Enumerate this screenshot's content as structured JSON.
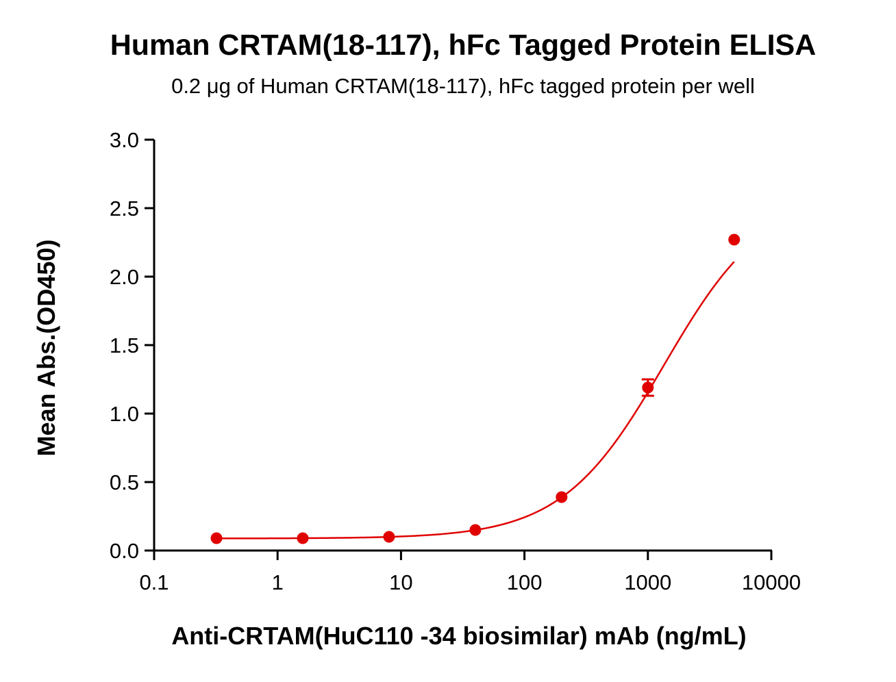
{
  "chart_data": {
    "type": "scatter",
    "title": "Human CRTAM(18-117), hFc Tagged Protein ELISA",
    "subtitle": "0.2 μg of Human CRTAM(18-117), hFc tagged protein per well",
    "xlabel": "Anti-CRTAM(HuC110 -34 biosimilar) mAb (ng/mL)",
    "ylabel": "Mean Abs.(OD450)",
    "x_scale": "log",
    "xlim": [
      0.1,
      10000
    ],
    "ylim": [
      0,
      3.0
    ],
    "x_tick_labels": [
      "0.1",
      "1",
      "10",
      "100",
      "1000",
      "10000"
    ],
    "x_ticks": [
      0.1,
      1,
      10,
      100,
      1000,
      10000
    ],
    "y_tick_labels": [
      "0.0",
      "0.5",
      "1.0",
      "1.5",
      "2.0",
      "2.5",
      "3.0"
    ],
    "y_ticks": [
      0,
      0.5,
      1.0,
      1.5,
      2.0,
      2.5,
      3.0
    ],
    "grid": false,
    "series": [
      {
        "x": [
          0.32,
          1.6,
          8,
          40,
          200,
          1000,
          5000
        ],
        "y": [
          0.09,
          0.09,
          0.1,
          0.15,
          0.39,
          1.19,
          2.27
        ],
        "y_error": [
          0,
          0,
          0,
          0,
          0,
          0.06,
          0
        ],
        "fit": "4PL curve",
        "color": "#e00000"
      }
    ]
  }
}
